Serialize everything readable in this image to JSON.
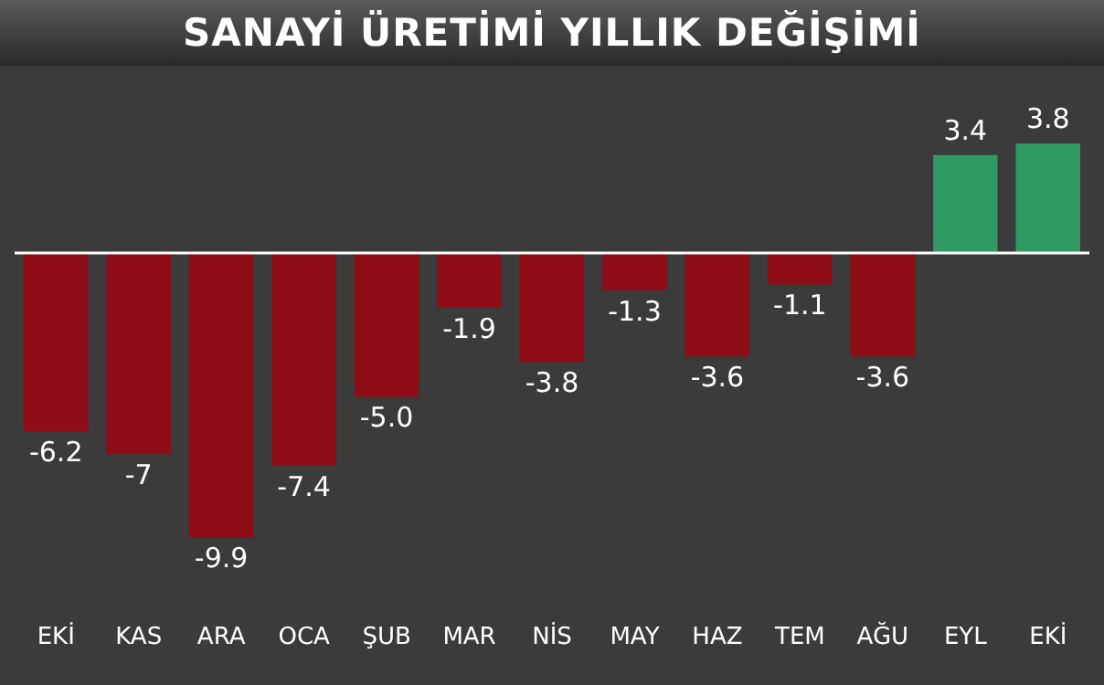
{
  "chart_data": {
    "type": "bar",
    "title": "SANAYİ ÜRETİMİ YILLIK DEĞİŞİMİ",
    "categories": [
      "EKİ",
      "KAS",
      "ARA",
      "OCA",
      "ŞUB",
      "MAR",
      "NİS",
      "MAY",
      "HAZ",
      "TEM",
      "AĞU",
      "EYL",
      "EKİ"
    ],
    "values": [
      -6.2,
      -7,
      -9.9,
      -7.4,
      -5.0,
      -1.9,
      -3.8,
      -1.3,
      -3.6,
      -1.1,
      -3.6,
      3.4,
      3.8
    ],
    "value_labels": [
      "-6.2",
      "-7",
      "-9.9",
      "-7.4",
      "-5.0",
      "-1.9",
      "-3.8",
      "-1.3",
      "-3.6",
      "-1.1",
      "-3.6",
      "3.4",
      "3.8"
    ],
    "colors": [
      "#8e0d17",
      "#8e0d17",
      "#8e0d17",
      "#8e0d17",
      "#8e0d17",
      "#8e0d17",
      "#8e0d17",
      "#8e0d17",
      "#8e0d17",
      "#8e0d17",
      "#8e0d17",
      "#2f9a63",
      "#2f9a63"
    ],
    "tick_labels": "x",
    "grid": false,
    "legend": false
  }
}
